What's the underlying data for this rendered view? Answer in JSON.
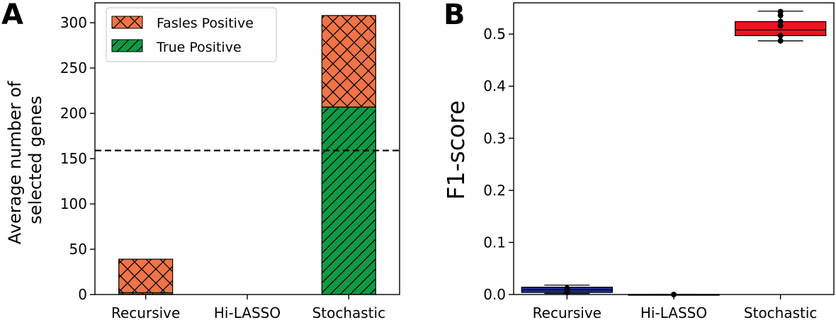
{
  "chart_data": [
    {
      "panel": "A",
      "type": "bar",
      "stacked": true,
      "categories": [
        "Recursive",
        "Hi-LASSO",
        "Stochastic"
      ],
      "series": [
        {
          "name": "True Positive",
          "values": [
            2,
            0,
            207
          ],
          "color": "#0e9a45",
          "hatch": "diagonal"
        },
        {
          "name": "Fasles Positive",
          "values": [
            37,
            0,
            101
          ],
          "color": "#f07448",
          "hatch": "crosshatch"
        }
      ],
      "reference_line": {
        "value": 159,
        "style": "dashed"
      },
      "ylabel": "Average number of\nselected genes",
      "ylim": [
        0,
        322
      ],
      "yticks": [
        0,
        50,
        100,
        150,
        200,
        250,
        300
      ],
      "legend": "top-left"
    },
    {
      "panel": "B",
      "type": "box",
      "categories": [
        "Recursive",
        "Hi-LASSO",
        "Stochastic"
      ],
      "boxes": [
        {
          "category": "Recursive",
          "q1": 0.004,
          "median": 0.009,
          "q3": 0.014,
          "whisker_low": 0.002,
          "whisker_high": 0.018,
          "points": [
            0.004,
            0.009,
            0.012
          ],
          "color": "#1f2f9a"
        },
        {
          "category": "Hi-LASSO",
          "q1": 0.0,
          "median": 0.0,
          "q3": 0.0,
          "whisker_low": 0.0,
          "whisker_high": 0.0,
          "points": [
            0.0
          ],
          "color": "#1a1a1a"
        },
        {
          "category": "Stochastic",
          "q1": 0.497,
          "median": 0.508,
          "q3": 0.524,
          "whisker_low": 0.487,
          "whisker_high": 0.544,
          "points": [
            0.487,
            0.497,
            0.516,
            0.524,
            0.536,
            0.543
          ],
          "color": "#e8171f"
        }
      ],
      "ylabel": "F1-score",
      "ylim": [
        0,
        0.56
      ],
      "yticks": [
        "0.0",
        "0.1",
        "0.2",
        "0.3",
        "0.4",
        "0.5"
      ]
    }
  ]
}
